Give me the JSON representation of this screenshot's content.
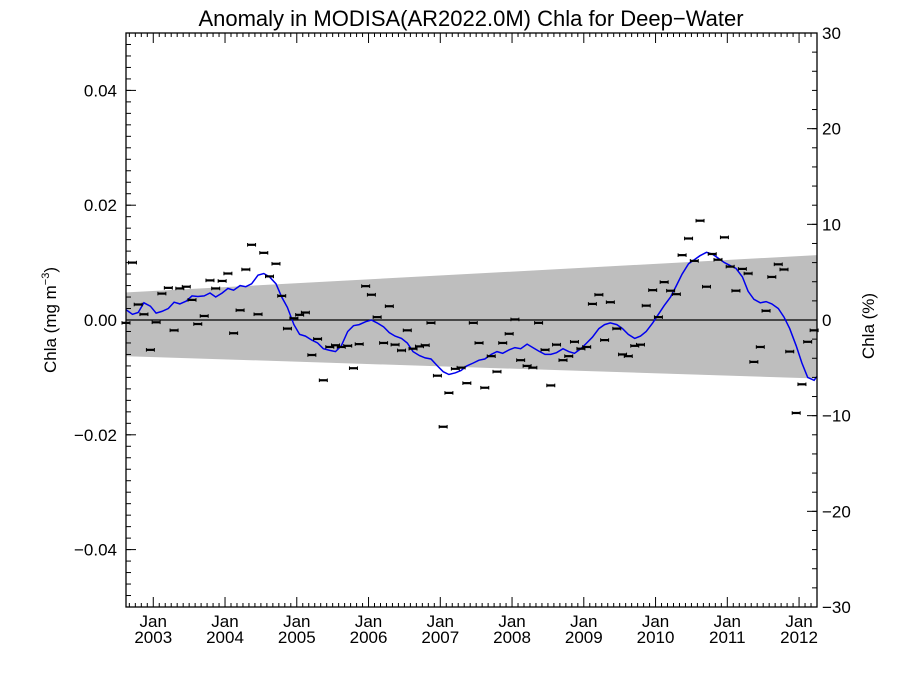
{
  "chart_data": {
    "type": "scatter",
    "title": "Anomaly in MODISA(AR2022.0M) Chla for Deep−Water",
    "ylabel_left": {
      "main": "Chla (mg m",
      "sup": "−3",
      "close": ")"
    },
    "ylabel_right": "Chla (%)",
    "x_range": [
      2002.62,
      2012.25
    ],
    "y_left_range": [
      -0.05,
      0.05
    ],
    "y_right_range": [
      -30,
      30
    ],
    "grid": false,
    "legend": "none",
    "x_ticks": [
      {
        "x": 2003.0,
        "month": "Jan",
        "year": "2003"
      },
      {
        "x": 2004.0,
        "month": "Jan",
        "year": "2004"
      },
      {
        "x": 2005.0,
        "month": "Jan",
        "year": "2005"
      },
      {
        "x": 2006.0,
        "month": "Jan",
        "year": "2006"
      },
      {
        "x": 2007.0,
        "month": "Jan",
        "year": "2007"
      },
      {
        "x": 2008.0,
        "month": "Jan",
        "year": "2008"
      },
      {
        "x": 2009.0,
        "month": "Jan",
        "year": "2009"
      },
      {
        "x": 2010.0,
        "month": "Jan",
        "year": "2010"
      },
      {
        "x": 2011.0,
        "month": "Jan",
        "year": "2011"
      },
      {
        "x": 2012.0,
        "month": "Jan",
        "year": "2012"
      }
    ],
    "y_left_ticks": [
      {
        "v": 0.04,
        "label": "0.04"
      },
      {
        "v": 0.02,
        "label": "0.02"
      },
      {
        "v": 0.0,
        "label": "0.00"
      },
      {
        "v": -0.02,
        "label": "−0.02"
      },
      {
        "v": -0.04,
        "label": "−0.04"
      }
    ],
    "y_right_ticks": [
      {
        "v": 30,
        "label": "30"
      },
      {
        "v": 20,
        "label": "20"
      },
      {
        "v": 10,
        "label": "10"
      },
      {
        "v": 0,
        "label": "0"
      },
      {
        "v": -10,
        "label": "−10"
      },
      {
        "v": -20,
        "label": "−20"
      },
      {
        "v": -30,
        "label": "−30"
      }
    ],
    "zero_line": 0.0,
    "confidence_band": {
      "x": [
        2002.62,
        2012.25
      ],
      "upper": [
        0.0048,
        0.0113
      ],
      "lower": [
        -0.0063,
        -0.0102
      ],
      "color": "#bebebe"
    },
    "monthly_anomalies": {
      "color": "#000000",
      "points": [
        {
          "x": 2002.62,
          "y": -0.0005
        },
        {
          "x": 2002.71,
          "y": 0.01
        },
        {
          "x": 2002.79,
          "y": 0.0027
        },
        {
          "x": 2002.87,
          "y": 0.001
        },
        {
          "x": 2002.96,
          "y": -0.0052
        },
        {
          "x": 2003.04,
          "y": -0.0004
        },
        {
          "x": 2003.12,
          "y": 0.0046
        },
        {
          "x": 2003.21,
          "y": 0.0056
        },
        {
          "x": 2003.29,
          "y": -0.0018
        },
        {
          "x": 2003.37,
          "y": 0.0055
        },
        {
          "x": 2003.46,
          "y": 0.0058
        },
        {
          "x": 2003.54,
          "y": 0.0035
        },
        {
          "x": 2003.62,
          "y": -0.0007
        },
        {
          "x": 2003.71,
          "y": 0.0007
        },
        {
          "x": 2003.79,
          "y": 0.0069
        },
        {
          "x": 2003.87,
          "y": 0.0055
        },
        {
          "x": 2003.96,
          "y": 0.0068
        },
        {
          "x": 2004.04,
          "y": 0.0081
        },
        {
          "x": 2004.12,
          "y": -0.0023
        },
        {
          "x": 2004.21,
          "y": 0.0017
        },
        {
          "x": 2004.29,
          "y": 0.0088
        },
        {
          "x": 2004.37,
          "y": 0.0131
        },
        {
          "x": 2004.46,
          "y": 0.001
        },
        {
          "x": 2004.54,
          "y": 0.0117
        },
        {
          "x": 2004.62,
          "y": 0.0076
        },
        {
          "x": 2004.71,
          "y": 0.0098
        },
        {
          "x": 2004.79,
          "y": 0.0042
        },
        {
          "x": 2004.87,
          "y": -0.0015
        },
        {
          "x": 2004.96,
          "y": 0.0003
        },
        {
          "x": 2005.04,
          "y": 0.0009
        },
        {
          "x": 2005.12,
          "y": 0.0013
        },
        {
          "x": 2005.21,
          "y": -0.0061
        },
        {
          "x": 2005.29,
          "y": -0.0033
        },
        {
          "x": 2005.37,
          "y": -0.0105
        },
        {
          "x": 2005.46,
          "y": -0.0047
        },
        {
          "x": 2005.54,
          "y": -0.0044
        },
        {
          "x": 2005.62,
          "y": -0.0047
        },
        {
          "x": 2005.71,
          "y": -0.0045
        },
        {
          "x": 2005.79,
          "y": -0.0084
        },
        {
          "x": 2005.87,
          "y": -0.0042
        },
        {
          "x": 2005.96,
          "y": 0.0059
        },
        {
          "x": 2006.04,
          "y": 0.0044
        },
        {
          "x": 2006.12,
          "y": 0.0005
        },
        {
          "x": 2006.21,
          "y": -0.004
        },
        {
          "x": 2006.29,
          "y": 0.0024
        },
        {
          "x": 2006.37,
          "y": -0.0043
        },
        {
          "x": 2006.46,
          "y": -0.0053
        },
        {
          "x": 2006.54,
          "y": -0.0018
        },
        {
          "x": 2006.62,
          "y": -0.005
        },
        {
          "x": 2006.71,
          "y": -0.0046
        },
        {
          "x": 2006.79,
          "y": -0.0044
        },
        {
          "x": 2006.87,
          "y": -0.0005
        },
        {
          "x": 2006.96,
          "y": -0.0097
        },
        {
          "x": 2007.04,
          "y": -0.0186
        },
        {
          "x": 2007.12,
          "y": -0.0127
        },
        {
          "x": 2007.21,
          "y": -0.0085
        },
        {
          "x": 2007.29,
          "y": -0.0083
        },
        {
          "x": 2007.37,
          "y": -0.011
        },
        {
          "x": 2007.46,
          "y": -0.0005
        },
        {
          "x": 2007.54,
          "y": -0.004
        },
        {
          "x": 2007.62,
          "y": -0.0118
        },
        {
          "x": 2007.71,
          "y": -0.0063
        },
        {
          "x": 2007.79,
          "y": -0.009
        },
        {
          "x": 2007.87,
          "y": -0.004
        },
        {
          "x": 2007.96,
          "y": -0.0024
        },
        {
          "x": 2008.04,
          "y": 0.0001
        },
        {
          "x": 2008.12,
          "y": -0.007
        },
        {
          "x": 2008.21,
          "y": -0.008
        },
        {
          "x": 2008.29,
          "y": -0.0083
        },
        {
          "x": 2008.37,
          "y": -0.0005
        },
        {
          "x": 2008.46,
          "y": -0.0052
        },
        {
          "x": 2008.54,
          "y": -0.0114
        },
        {
          "x": 2008.62,
          "y": -0.0043
        },
        {
          "x": 2008.71,
          "y": -0.007
        },
        {
          "x": 2008.79,
          "y": -0.0063
        },
        {
          "x": 2008.87,
          "y": -0.0038
        },
        {
          "x": 2008.96,
          "y": -0.005
        },
        {
          "x": 2009.04,
          "y": -0.0047
        },
        {
          "x": 2009.12,
          "y": 0.0028
        },
        {
          "x": 2009.21,
          "y": 0.0044
        },
        {
          "x": 2009.29,
          "y": -0.0035
        },
        {
          "x": 2009.37,
          "y": 0.0031
        },
        {
          "x": 2009.46,
          "y": -0.0015
        },
        {
          "x": 2009.54,
          "y": -0.006
        },
        {
          "x": 2009.62,
          "y": -0.0063
        },
        {
          "x": 2009.71,
          "y": -0.0045
        },
        {
          "x": 2009.79,
          "y": -0.0043
        },
        {
          "x": 2009.87,
          "y": 0.0025
        },
        {
          "x": 2009.96,
          "y": 0.0052
        },
        {
          "x": 2010.04,
          "y": 0.0005
        },
        {
          "x": 2010.12,
          "y": 0.0066
        },
        {
          "x": 2010.21,
          "y": 0.0051
        },
        {
          "x": 2010.29,
          "y": 0.0045
        },
        {
          "x": 2010.37,
          "y": 0.0113
        },
        {
          "x": 2010.46,
          "y": 0.0142
        },
        {
          "x": 2010.54,
          "y": 0.0103
        },
        {
          "x": 2010.62,
          "y": 0.0173
        },
        {
          "x": 2010.71,
          "y": 0.0058
        },
        {
          "x": 2010.79,
          "y": 0.0115
        },
        {
          "x": 2010.87,
          "y": 0.0105
        },
        {
          "x": 2010.96,
          "y": 0.0144
        },
        {
          "x": 2011.04,
          "y": 0.0093
        },
        {
          "x": 2011.12,
          "y": 0.0051
        },
        {
          "x": 2011.21,
          "y": 0.0089
        },
        {
          "x": 2011.29,
          "y": 0.0081
        },
        {
          "x": 2011.37,
          "y": -0.0073
        },
        {
          "x": 2011.46,
          "y": -0.0047
        },
        {
          "x": 2011.54,
          "y": 0.0016
        },
        {
          "x": 2011.62,
          "y": 0.0075
        },
        {
          "x": 2011.71,
          "y": 0.0097
        },
        {
          "x": 2011.79,
          "y": 0.0088
        },
        {
          "x": 2011.87,
          "y": -0.0055
        },
        {
          "x": 2011.96,
          "y": -0.0162
        },
        {
          "x": 2012.04,
          "y": -0.0112
        },
        {
          "x": 2012.12,
          "y": -0.0038
        },
        {
          "x": 2012.21,
          "y": -0.0018
        }
      ]
    },
    "running_mean": {
      "color": "#0000ee",
      "x": [
        2002.62,
        2002.71,
        2002.79,
        2002.87,
        2002.96,
        2003.04,
        2003.12,
        2003.21,
        2003.29,
        2003.37,
        2003.46,
        2003.54,
        2003.62,
        2003.71,
        2003.79,
        2003.87,
        2003.96,
        2004.04,
        2004.12,
        2004.21,
        2004.29,
        2004.37,
        2004.46,
        2004.54,
        2004.62,
        2004.71,
        2004.79,
        2004.87,
        2004.96,
        2005.04,
        2005.12,
        2005.21,
        2005.29,
        2005.37,
        2005.46,
        2005.54,
        2005.62,
        2005.71,
        2005.79,
        2005.87,
        2005.96,
        2006.04,
        2006.12,
        2006.21,
        2006.29,
        2006.37,
        2006.46,
        2006.54,
        2006.62,
        2006.71,
        2006.79,
        2006.87,
        2006.96,
        2007.04,
        2007.12,
        2007.21,
        2007.29,
        2007.37,
        2007.46,
        2007.54,
        2007.62,
        2007.71,
        2007.79,
        2007.87,
        2007.96,
        2008.04,
        2008.12,
        2008.21,
        2008.29,
        2008.37,
        2008.46,
        2008.54,
        2008.62,
        2008.71,
        2008.79,
        2008.87,
        2008.96,
        2009.04,
        2009.12,
        2009.21,
        2009.29,
        2009.37,
        2009.46,
        2009.54,
        2009.62,
        2009.71,
        2009.79,
        2009.87,
        2009.96,
        2010.04,
        2010.12,
        2010.21,
        2010.29,
        2010.37,
        2010.46,
        2010.54,
        2010.62,
        2010.71,
        2010.79,
        2010.87,
        2010.96,
        2011.04,
        2011.12,
        2011.21,
        2011.29,
        2011.37,
        2011.46,
        2011.54,
        2011.62,
        2011.71,
        2011.79,
        2011.87,
        2011.96,
        2012.04,
        2012.12,
        2012.21,
        2012.25
      ],
      "y": [
        0.0018,
        0.001,
        0.0013,
        0.003,
        0.0024,
        0.0012,
        0.0015,
        0.002,
        0.0031,
        0.0028,
        0.0033,
        0.0042,
        0.0041,
        0.0042,
        0.0047,
        0.004,
        0.0047,
        0.0055,
        0.0052,
        0.006,
        0.0058,
        0.0063,
        0.0078,
        0.0081,
        0.0075,
        0.0063,
        0.004,
        0.0022,
        -0.0008,
        -0.0025,
        -0.0028,
        -0.0035,
        -0.004,
        -0.005,
        -0.0053,
        -0.0055,
        -0.0045,
        -0.002,
        -0.001,
        -0.0008,
        -0.0003,
        0.0,
        -0.0005,
        -0.0012,
        -0.0022,
        -0.0028,
        -0.0032,
        -0.004,
        -0.0055,
        -0.0062,
        -0.0066,
        -0.0068,
        -0.008,
        -0.009,
        -0.0095,
        -0.0092,
        -0.0088,
        -0.008,
        -0.0075,
        -0.007,
        -0.0068,
        -0.006,
        -0.0055,
        -0.0058,
        -0.0052,
        -0.0048,
        -0.005,
        -0.0042,
        -0.0048,
        -0.0054,
        -0.006,
        -0.006,
        -0.0057,
        -0.005,
        -0.0055,
        -0.0058,
        -0.005,
        -0.004,
        -0.003,
        -0.0015,
        -0.0008,
        -0.0005,
        -0.0008,
        -0.0015,
        -0.0025,
        -0.0032,
        -0.0028,
        -0.002,
        -0.0005,
        0.001,
        0.0025,
        0.004,
        0.006,
        0.008,
        0.0098,
        0.0105,
        0.0112,
        0.0118,
        0.0115,
        0.0108,
        0.01,
        0.0095,
        0.009,
        0.0075,
        0.005,
        0.0036,
        0.003,
        0.0032,
        0.0028,
        0.002,
        0.0005,
        -0.0015,
        -0.0045,
        -0.0075,
        -0.01,
        -0.0105,
        -0.0098
      ]
    }
  }
}
